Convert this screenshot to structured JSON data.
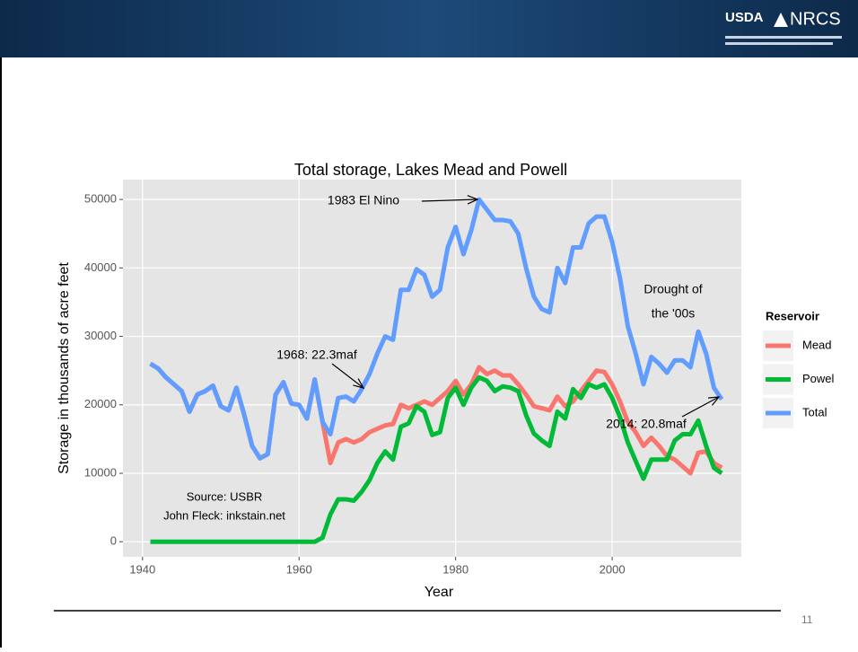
{
  "slide": {
    "logo_left": "USDA",
    "logo_right": "NRCS",
    "page_number": 11
  },
  "chart_data": {
    "type": "line",
    "title": "Total storage, Lakes Mead and Powell",
    "x_label": "Year",
    "y_label": "Storage in thousands of acre feet",
    "legend_title": "Reservoir",
    "legend_position": "right",
    "grid": true,
    "xlim": [
      1937.5,
      2016.5
    ],
    "xticks": [
      1940,
      1960,
      1980,
      2000
    ],
    "ylim": [
      -2200,
      52900
    ],
    "yticks": [
      0,
      10000,
      20000,
      30000,
      40000,
      50000
    ],
    "x": [
      1941,
      1942,
      1943,
      1944,
      1945,
      1946,
      1947,
      1948,
      1949,
      1950,
      1951,
      1952,
      1953,
      1954,
      1955,
      1956,
      1957,
      1958,
      1959,
      1960,
      1961,
      1962,
      1963,
      1964,
      1965,
      1966,
      1967,
      1968,
      1969,
      1970,
      1971,
      1972,
      1973,
      1974,
      1975,
      1976,
      1977,
      1978,
      1979,
      1980,
      1981,
      1982,
      1983,
      1984,
      1985,
      1986,
      1987,
      1988,
      1989,
      1990,
      1991,
      1992,
      1993,
      1994,
      1995,
      1996,
      1997,
      1998,
      1999,
      2000,
      2001,
      2002,
      2003,
      2004,
      2005,
      2006,
      2007,
      2008,
      2009,
      2010,
      2011,
      2012,
      2013,
      2014
    ],
    "series": [
      {
        "name": "Mead",
        "color": "#F8766D",
        "values": [
          26000,
          25300,
          24000,
          23000,
          22000,
          19000,
          21500,
          22000,
          22800,
          19800,
          19200,
          22500,
          18500,
          14000,
          12200,
          12800,
          21500,
          23300,
          20200,
          20000,
          18000,
          23700,
          17500,
          11500,
          14500,
          15000,
          14500,
          15000,
          16000,
          16500,
          17000,
          17200,
          20000,
          19500,
          20000,
          20500,
          20000,
          21000,
          22000,
          23500,
          21500,
          23000,
          25500,
          24500,
          25000,
          24300,
          24300,
          23000,
          21500,
          19800,
          19500,
          19200,
          21200,
          19800,
          20500,
          22000,
          23500,
          25000,
          24800,
          23000,
          20500,
          17500,
          16000,
          14000,
          15200,
          14000,
          12500,
          12000,
          11000,
          10000,
          13000,
          13200,
          11500,
          10800
        ]
      },
      {
        "name": "Powel",
        "color": "#00BA38",
        "values": [
          0,
          0,
          0,
          0,
          0,
          0,
          0,
          0,
          0,
          0,
          0,
          0,
          0,
          0,
          0,
          0,
          0,
          0,
          0,
          0,
          0,
          0,
          600,
          4000,
          6200,
          6200,
          6000,
          7300,
          9000,
          11500,
          13200,
          12000,
          16800,
          17300,
          19800,
          19000,
          15600,
          16000,
          21000,
          22500,
          20000,
          22500,
          24000,
          23500,
          22000,
          22700,
          22500,
          22000,
          18500,
          15800,
          14800,
          14000,
          19000,
          18000,
          22300,
          21000,
          23000,
          22500,
          23000,
          21000,
          18200,
          14500,
          11800,
          9200,
          12000,
          12000,
          12000,
          14800,
          15700,
          15700,
          17700,
          14000,
          10800,
          10000
        ]
      },
      {
        "name": "Total",
        "color": "#619CFF",
        "values": [
          26000,
          25300,
          24000,
          23000,
          22000,
          19000,
          21500,
          22000,
          22800,
          19800,
          19200,
          22500,
          18500,
          14000,
          12200,
          12800,
          21500,
          23300,
          20200,
          20000,
          18000,
          23700,
          17500,
          15700,
          21000,
          21200,
          20500,
          22300,
          24500,
          27500,
          30000,
          29500,
          36800,
          36800,
          39800,
          39000,
          35800,
          36800,
          43000,
          46000,
          42000,
          45500,
          50000,
          48500,
          47000,
          47000,
          46800,
          45000,
          40000,
          35800,
          34000,
          33500,
          40000,
          37800,
          43000,
          43000,
          46500,
          47500,
          47500,
          43800,
          38500,
          31500,
          27500,
          23000,
          27000,
          26000,
          24700,
          26500,
          26500,
          25500,
          30700,
          27500,
          22500,
          20800
        ]
      }
    ],
    "annotations": [
      "1983 El Nino",
      "1968: 22.3maf",
      "Drought of",
      "the '00s",
      "2014: 20.8maf",
      "Source: USBR",
      "John Fleck: inkstain.net"
    ]
  }
}
